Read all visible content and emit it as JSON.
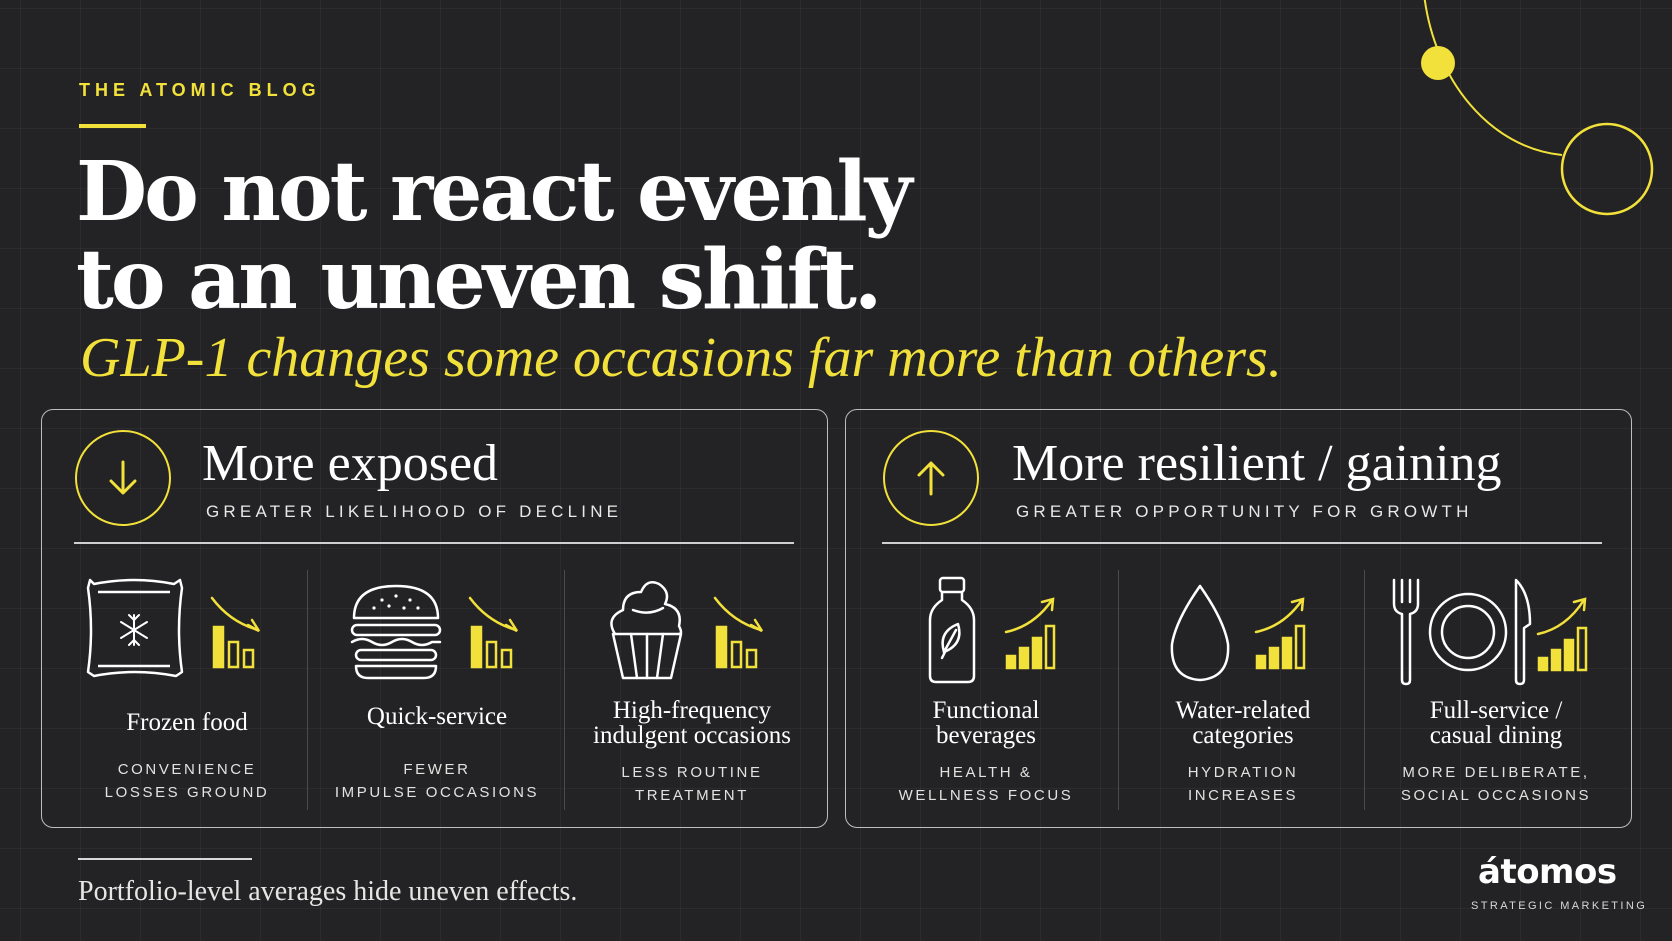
{
  "header": {
    "blog_label": "THE ATOMIC BLOG",
    "headline_line1": "Do not react evenly",
    "headline_line2": "to an uneven shift.",
    "subhead": "GLP-1 changes some occasions far more than others."
  },
  "panels": [
    {
      "title": "More exposed",
      "subtitle": "GREATER LIKELIHOOD OF DECLINE",
      "direction_icon": "arrow-down-icon",
      "trend": "declining",
      "items": [
        {
          "icon": "frozen-food-bag-icon",
          "title": "Frozen food",
          "desc_line1": "CONVENIENCE",
          "desc_line2": "LOSSES GROUND"
        },
        {
          "icon": "burger-icon",
          "title": "Quick-service",
          "desc_line1": "FEWER",
          "desc_line2": "IMPULSE OCCASIONS"
        },
        {
          "icon": "cupcake-icon",
          "title_line1": "High-frequency",
          "title_line2": "indulgent occasions",
          "desc_line1": "LESS ROUTINE",
          "desc_line2": "TREATMENT"
        }
      ]
    },
    {
      "title": "More resilient / gaining",
      "subtitle": "GREATER OPPORTUNITY FOR GROWTH",
      "direction_icon": "arrow-up-icon",
      "trend": "rising",
      "items": [
        {
          "icon": "bottle-leaf-icon",
          "title_line1": "Functional",
          "title_line2": "beverages",
          "desc_line1": "HEALTH &",
          "desc_line2": "WELLNESS FOCUS"
        },
        {
          "icon": "water-drop-icon",
          "title_line1": "Water-related",
          "title_line2": "categories",
          "desc_line1": "HYDRATION",
          "desc_line2": "INCREASES"
        },
        {
          "icon": "fork-plate-knife-icon",
          "title_line1": "Full-service /",
          "title_line2": "casual dining",
          "desc_line1": "MORE DELIBERATE,",
          "desc_line2": "SOCIAL OCCASIONS"
        }
      ]
    }
  ],
  "footer": {
    "note": "Portfolio-level averages hide uneven effects."
  },
  "brand": {
    "name": "átomos",
    "tagline": "STRATEGIC MARKETING"
  },
  "colors": {
    "background": "#232325",
    "accent": "#f2e13a",
    "text": "#ffffff",
    "border": "#bdbdbd"
  }
}
